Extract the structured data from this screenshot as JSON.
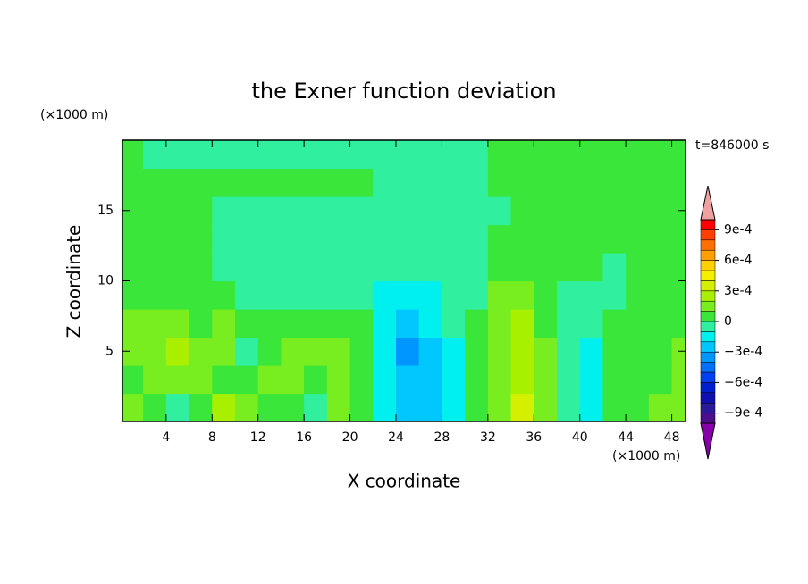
{
  "chart_data": {
    "type": "contour",
    "title": "the Exner function deviation",
    "x_label": "X coordinate",
    "y_label": "Z coordinate",
    "x_unit": "(×1000 m)",
    "y_unit": "(×1000 m)",
    "annotation": "t=846000 s",
    "xlim": [
      0.2,
      49.2
    ],
    "ylim": [
      0,
      20
    ],
    "xticks": [
      4,
      8,
      12,
      16,
      20,
      24,
      28,
      32,
      36,
      40,
      44,
      48
    ],
    "yticks": [
      5,
      10,
      15
    ],
    "x": [
      1,
      3,
      5,
      7,
      9,
      11,
      13,
      15,
      17,
      19,
      21,
      23,
      25,
      27,
      29,
      31,
      33,
      35,
      37,
      39,
      41,
      43,
      45,
      47,
      49
    ],
    "y": [
      1,
      3,
      5,
      7,
      9,
      11,
      13,
      15,
      17,
      19
    ],
    "values": [
      [
        0.00015,
        5e-05,
        -5e-05,
        5e-05,
        0.00025,
        0.00015,
        5e-05,
        5e-05,
        -5e-05,
        0.00015,
        5e-05,
        -0.00015,
        -0.00025,
        -0.00025,
        -0.00015,
        5e-05,
        0.00015,
        0.00035,
        0.00015,
        -5e-05,
        -0.00015,
        5e-05,
        5e-05,
        0.00015,
        0.00015
      ],
      [
        5e-05,
        0.00015,
        0.00015,
        0.00015,
        5e-05,
        5e-05,
        0.00015,
        0.00015,
        5e-05,
        0.00015,
        5e-05,
        -0.00015,
        -0.00025,
        -0.00025,
        -0.00015,
        5e-05,
        0.00015,
        0.00025,
        0.00015,
        -5e-05,
        -0.00015,
        5e-05,
        5e-05,
        5e-05,
        0.00015
      ],
      [
        0.00015,
        0.00015,
        0.00025,
        0.00015,
        0.00015,
        -5e-05,
        5e-05,
        0.00015,
        0.00015,
        0.00015,
        5e-05,
        -0.00015,
        -0.00035,
        -0.00025,
        -0.00015,
        5e-05,
        0.00015,
        0.00025,
        0.00015,
        -5e-05,
        -0.00015,
        5e-05,
        5e-05,
        5e-05,
        0.00015
      ],
      [
        0.00015,
        0.00015,
        0.00015,
        5e-05,
        0.00015,
        5e-05,
        5e-05,
        5e-05,
        5e-05,
        5e-05,
        5e-05,
        -0.00015,
        -0.00025,
        -0.00015,
        -5e-05,
        5e-05,
        0.00015,
        0.00025,
        5e-05,
        -5e-05,
        -5e-05,
        5e-05,
        5e-05,
        5e-05,
        5e-05
      ],
      [
        5e-05,
        5e-05,
        5e-05,
        5e-05,
        5e-05,
        -5e-05,
        -5e-05,
        -5e-05,
        -5e-05,
        -5e-05,
        -5e-05,
        -0.00015,
        -0.00015,
        -0.00015,
        -5e-05,
        -5e-05,
        0.00015,
        0.00015,
        5e-05,
        -5e-05,
        -5e-05,
        -5e-05,
        5e-05,
        5e-05,
        5e-05
      ],
      [
        5e-05,
        5e-05,
        5e-05,
        5e-05,
        -5e-05,
        -5e-05,
        -5e-05,
        -5e-05,
        -5e-05,
        -5e-05,
        -5e-05,
        -5e-05,
        -5e-05,
        -5e-05,
        -5e-05,
        -5e-05,
        5e-05,
        5e-05,
        5e-05,
        5e-05,
        5e-05,
        -5e-05,
        5e-05,
        5e-05,
        5e-05
      ],
      [
        5e-05,
        5e-05,
        5e-05,
        5e-05,
        -5e-05,
        -5e-05,
        -5e-05,
        -5e-05,
        -5e-05,
        -5e-05,
        -5e-05,
        -5e-05,
        -5e-05,
        -5e-05,
        -5e-05,
        -5e-05,
        5e-05,
        5e-05,
        5e-05,
        5e-05,
        5e-05,
        5e-05,
        5e-05,
        5e-05,
        5e-05
      ],
      [
        5e-05,
        5e-05,
        5e-05,
        5e-05,
        -5e-05,
        -5e-05,
        -5e-05,
        -5e-05,
        -5e-05,
        -5e-05,
        -5e-05,
        -5e-05,
        -5e-05,
        -5e-05,
        -5e-05,
        -5e-05,
        -5e-05,
        5e-05,
        5e-05,
        5e-05,
        5e-05,
        5e-05,
        5e-05,
        5e-05,
        5e-05
      ],
      [
        5e-05,
        5e-05,
        5e-05,
        5e-05,
        5e-05,
        5e-05,
        5e-05,
        5e-05,
        5e-05,
        5e-05,
        5e-05,
        -5e-05,
        -5e-05,
        -5e-05,
        -5e-05,
        -5e-05,
        5e-05,
        5e-05,
        5e-05,
        5e-05,
        5e-05,
        5e-05,
        5e-05,
        5e-05,
        5e-05
      ],
      [
        5e-05,
        -5e-05,
        -5e-05,
        -5e-05,
        -5e-05,
        -5e-05,
        -5e-05,
        -5e-05,
        -5e-05,
        -5e-05,
        -5e-05,
        -5e-05,
        -5e-05,
        -5e-05,
        -5e-05,
        -5e-05,
        5e-05,
        5e-05,
        5e-05,
        5e-05,
        5e-05,
        5e-05,
        5e-05,
        5e-05,
        5e-05
      ]
    ],
    "levels": [
      -0.001,
      -0.0009,
      -0.0008,
      -0.0007,
      -0.0006,
      -0.0005,
      -0.0004,
      -0.0003,
      -0.0002,
      -0.0001,
      0,
      0.0001,
      0.0002,
      0.0003,
      0.0004,
      0.0005,
      0.0006,
      0.0007,
      0.0008,
      0.0009,
      0.001
    ],
    "colors": [
      "#4b0f8c",
      "#2a1a9a",
      "#1010b0",
      "#0020d0",
      "#0040f0",
      "#0070f8",
      "#0096ff",
      "#00c8ff",
      "#00f0f0",
      "#30f0a0",
      "#3ae63a",
      "#78ee20",
      "#a8f000",
      "#d4f000",
      "#f4f000",
      "#ffd000",
      "#ffa000",
      "#ff7000",
      "#ff4000",
      "#ff0000"
    ],
    "extend_colors": {
      "upper": "#f0a0a0",
      "lower": "#8800aa"
    },
    "colorbar_ticks": [
      {
        "value": 0.0009,
        "label": "9e-4"
      },
      {
        "value": 0.0006,
        "label": "6e-4"
      },
      {
        "value": 0.0003,
        "label": "3e-4"
      },
      0,
      {
        "value": -0.0003,
        "label": "−3e-4"
      },
      {
        "value": -0.0006,
        "label": "−6e-4"
      },
      {
        "value": -0.0009,
        "label": "−9e-4"
      }
    ]
  }
}
